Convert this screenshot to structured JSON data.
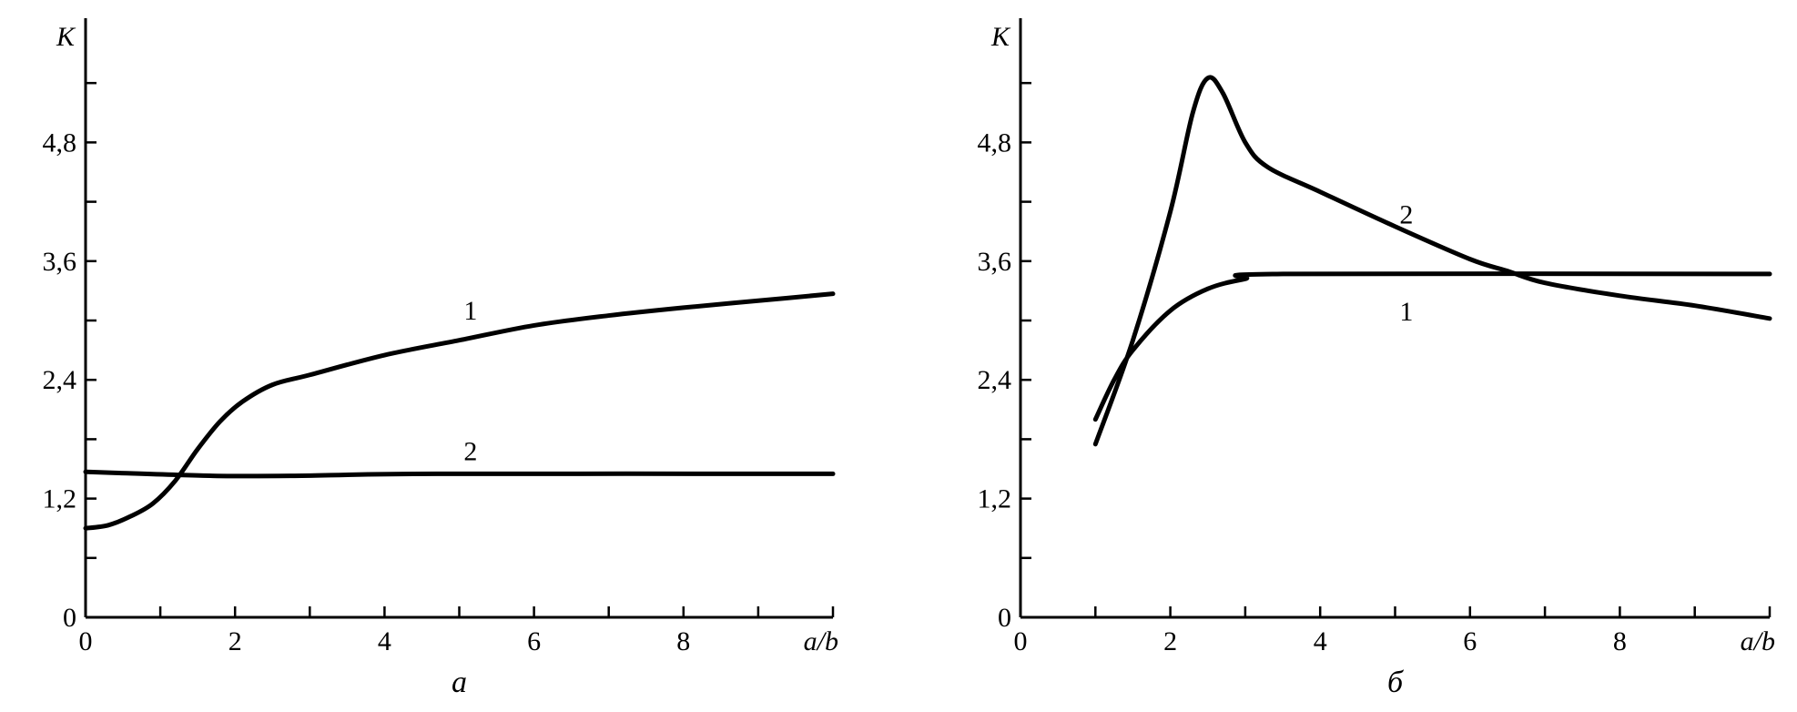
{
  "chart_data": [
    {
      "type": "line",
      "panel_label": "а",
      "xlabel": "a/b",
      "ylabel": "K",
      "xlim": [
        0,
        10
      ],
      "ylim": [
        0,
        6
      ],
      "x_tick_labels": [
        "0",
        "2",
        "4",
        "6",
        "8"
      ],
      "y_tick_labels": [
        "0",
        "1,2",
        "2,4",
        "3,6",
        "4,8"
      ],
      "grid": false,
      "series": [
        {
          "name": "1",
          "label_at": [
            5.15,
            3.1
          ],
          "x": [
            0,
            0.3,
            0.6,
            0.9,
            1.2,
            1.5,
            1.8,
            2.1,
            2.5,
            3,
            4,
            5,
            6,
            7,
            8,
            9,
            10
          ],
          "y": [
            0.9,
            0.93,
            1.02,
            1.15,
            1.38,
            1.7,
            1.98,
            2.18,
            2.35,
            2.45,
            2.65,
            2.8,
            2.95,
            3.05,
            3.13,
            3.2,
            3.27
          ]
        },
        {
          "name": "2",
          "label_at": [
            5.15,
            1.68
          ],
          "x": [
            0,
            0.4,
            1.7,
            2.8,
            4.7,
            10
          ],
          "y": [
            1.47,
            1.46,
            1.43,
            1.43,
            1.45,
            1.45
          ]
        }
      ]
    },
    {
      "type": "line",
      "panel_label": "б",
      "xlabel": "a/b",
      "ylabel": "K",
      "xlim": [
        0,
        10
      ],
      "ylim": [
        0,
        6
      ],
      "x_tick_labels": [
        "0",
        "2",
        "4",
        "6",
        "8"
      ],
      "y_tick_labels": [
        "0",
        "1,2",
        "2,4",
        "3,6",
        "4,8"
      ],
      "grid": false,
      "series": [
        {
          "name": "1",
          "label_at": [
            5.15,
            3.09
          ],
          "x": [
            1,
            1.25,
            1.5,
            2,
            2.5,
            3,
            3.5,
            10
          ],
          "y": [
            2.0,
            2.4,
            2.7,
            3.1,
            3.32,
            3.42,
            3.47,
            3.47
          ]
        },
        {
          "name": "2",
          "label_at": [
            5.15,
            4.07
          ],
          "x": [
            1,
            1.5,
            2,
            2.3,
            2.5,
            2.7,
            3,
            3.3,
            4,
            5,
            6,
            6.5,
            7,
            8,
            9,
            10
          ],
          "y": [
            1.75,
            2.8,
            4.1,
            5.1,
            5.45,
            5.3,
            4.8,
            4.55,
            4.3,
            3.95,
            3.62,
            3.5,
            3.38,
            3.25,
            3.15,
            3.02
          ]
        }
      ]
    }
  ]
}
